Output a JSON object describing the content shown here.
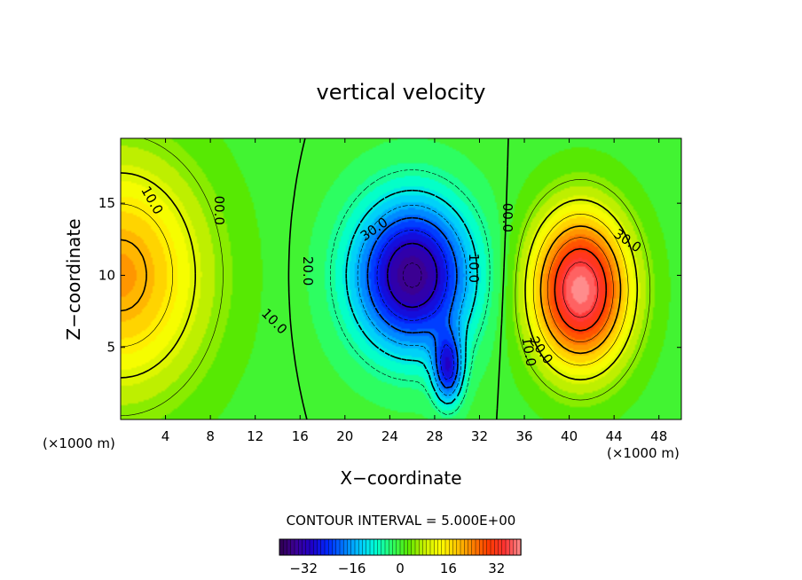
{
  "chart_data": {
    "type": "heatmap",
    "title": "vertical velocity",
    "xlabel": "X−coordinate",
    "ylabel": "Z−coordinate",
    "x_unit_label": "(×1000 m)",
    "y_unit_label": "(×1000 m)",
    "xlim": [
      0,
      50
    ],
    "ylim": [
      0,
      19.5
    ],
    "x_ticks": [
      "4",
      "8",
      "12",
      "16",
      "20",
      "24",
      "28",
      "32",
      "36",
      "40",
      "44",
      "48"
    ],
    "y_ticks": [
      "5",
      "10",
      "15"
    ],
    "contour_interval_text": "CONTOUR INTERVAL = 5.000E+00",
    "contour_interval": 5,
    "value_range": [
      -40,
      40
    ],
    "colorbar_ticks": [
      "−32",
      "−16",
      "0",
      "16",
      "32"
    ],
    "cells": [
      {
        "x": 0,
        "z": 10,
        "sx": 7.5,
        "sz": 8,
        "amp": 22
      },
      {
        "x": 26,
        "z": 10,
        "sx": 5.2,
        "sz": 5.2,
        "amp": -36
      },
      {
        "x": 29.2,
        "z": 3.5,
        "sx": 1.3,
        "sz": 2.4,
        "amp": -24
      },
      {
        "x": 41,
        "z": 9,
        "sx": 4.3,
        "sz": 5.3,
        "amp": 40
      }
    ],
    "contour_labels": [
      {
        "text": "10.0",
        "x": 2.8,
        "z": 15.2,
        "rot": 60
      },
      {
        "text": "00.0",
        "x": 8.8,
        "z": 14.5,
        "rot": 90
      },
      {
        "text": "30.0",
        "x": 22.6,
        "z": 13.2,
        "rot": -35
      },
      {
        "text": "20.0",
        "x": 16.7,
        "z": 10.3,
        "rot": 90
      },
      {
        "text": "10.0",
        "x": 13.7,
        "z": 6.8,
        "rot": 45
      },
      {
        "text": "10.0",
        "x": 31.5,
        "z": 10.5,
        "rot": 90
      },
      {
        "text": "00.0",
        "x": 34.5,
        "z": 14.0,
        "rot": 90
      },
      {
        "text": "30.0",
        "x": 45.2,
        "z": 12.4,
        "rot": 35
      },
      {
        "text": "20.0",
        "x": 37.5,
        "z": 4.8,
        "rot": 55
      },
      {
        "text": "10.0",
        "x": 36.4,
        "z": 4.7,
        "rot": 80
      }
    ]
  },
  "colors": {
    "palette": [
      "#300050",
      "#3c0096",
      "#1e00c8",
      "#0028ff",
      "#0078ff",
      "#00c8ff",
      "#00ffd2",
      "#2cff64",
      "#58e800",
      "#c8f000",
      "#ffff00",
      "#ffc800",
      "#ff8200",
      "#ff3c00",
      "#ff3232",
      "#ff8c8c"
    ]
  }
}
